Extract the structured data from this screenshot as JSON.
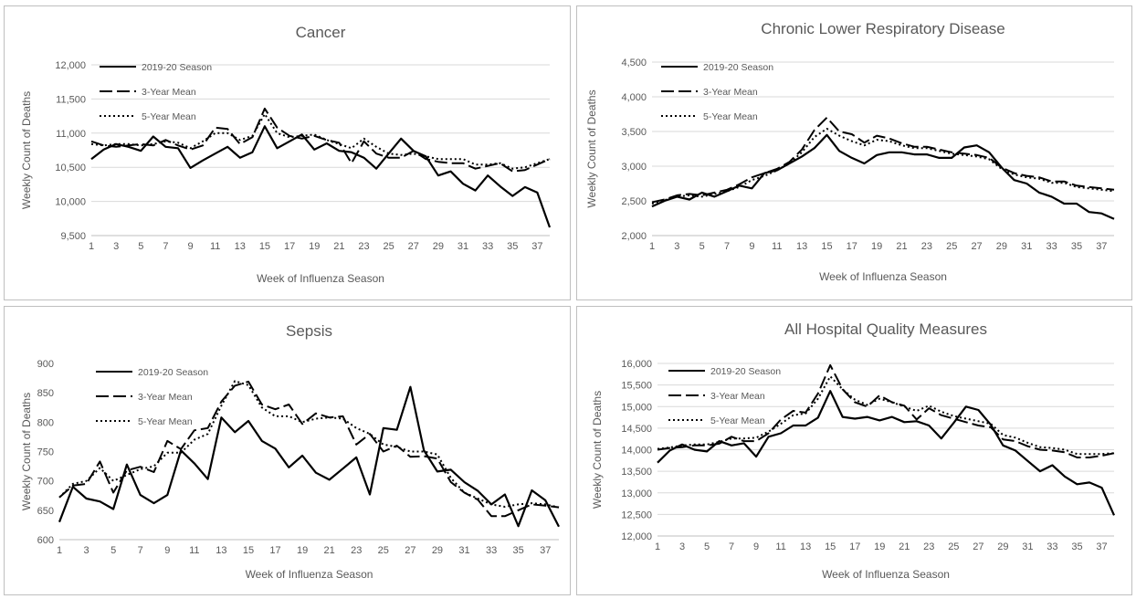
{
  "chart_data": [
    {
      "type": "line",
      "title": "Cancer",
      "xlabel": "Week of Influenza Season",
      "ylabel": "Weekly Count of Deaths",
      "ylim": [
        9500,
        12000
      ],
      "yticks": [
        "9,500",
        "10,000",
        "10,500",
        "11,000",
        "11,500",
        "12,000"
      ],
      "xticks": [
        "1",
        "3",
        "5",
        "7",
        "9",
        "11",
        "13",
        "15",
        "17",
        "19",
        "21",
        "23",
        "25",
        "27",
        "29",
        "31",
        "33",
        "35",
        "37"
      ],
      "xlim": [
        1,
        38
      ],
      "grid": true,
      "legend_position": "top-left",
      "series": [
        {
          "name": "2019-20 Season",
          "dash": "solid",
          "values": [
            10620,
            10760,
            10840,
            10800,
            10740,
            10950,
            10800,
            10780,
            10490,
            10600,
            10700,
            10800,
            10640,
            10720,
            11100,
            10780,
            10880,
            10980,
            10760,
            10850,
            10740,
            10720,
            10640,
            10480,
            10700,
            10920,
            10740,
            10660,
            10380,
            10440,
            10260,
            10160,
            10380,
            10220,
            10080,
            10210,
            10130,
            9620
          ]
        },
        {
          "name": "3-Year Mean",
          "dash": "long",
          "values": [
            10880,
            10820,
            10800,
            10820,
            10840,
            10820,
            10900,
            10820,
            10760,
            10820,
            11080,
            11060,
            10840,
            10940,
            11360,
            11080,
            10960,
            10920,
            10960,
            10900,
            10860,
            10560,
            10880,
            10700,
            10640,
            10640,
            10740,
            10620,
            10580,
            10560,
            10560,
            10480,
            10520,
            10560,
            10440,
            10460,
            10540,
            10620
          ]
        },
        {
          "name": "5-Year Mean",
          "dash": "dot",
          "values": [
            10840,
            10820,
            10840,
            10840,
            10820,
            10840,
            10880,
            10860,
            10780,
            10880,
            11000,
            11000,
            10900,
            10960,
            11280,
            11000,
            10940,
            10960,
            10980,
            10900,
            10840,
            10780,
            10920,
            10800,
            10700,
            10680,
            10700,
            10660,
            10620,
            10620,
            10620,
            10540,
            10540,
            10560,
            10480,
            10500,
            10560,
            10620
          ]
        }
      ]
    },
    {
      "type": "line",
      "title": "Chronic Lower Respiratory Disease",
      "xlabel": "Week of Influenza Season",
      "ylabel": "Weekly Count of Deaths",
      "ylim": [
        2000,
        4500
      ],
      "yticks": [
        "2,000",
        "2,500",
        "3,000",
        "3,500",
        "4,000",
        "4,500"
      ],
      "xticks": [
        "1",
        "3",
        "5",
        "7",
        "9",
        "11",
        "13",
        "15",
        "17",
        "19",
        "21",
        "23",
        "25",
        "27",
        "29",
        "31",
        "33",
        "35",
        "37"
      ],
      "xlim": [
        1,
        38
      ],
      "grid": true,
      "legend_position": "top-left",
      "series": [
        {
          "name": "2019-20 Season",
          "dash": "solid",
          "values": [
            2420,
            2500,
            2560,
            2520,
            2620,
            2560,
            2640,
            2720,
            2680,
            2900,
            2940,
            3040,
            3140,
            3260,
            3450,
            3220,
            3120,
            3040,
            3160,
            3200,
            3200,
            3170,
            3170,
            3120,
            3120,
            3270,
            3300,
            3200,
            2980,
            2800,
            2750,
            2620,
            2560,
            2460,
            2460,
            2340,
            2320,
            2240
          ]
        },
        {
          "name": "3-Year Mean",
          "dash": "long",
          "values": [
            2480,
            2520,
            2580,
            2600,
            2580,
            2620,
            2660,
            2740,
            2840,
            2900,
            2960,
            3060,
            3240,
            3520,
            3700,
            3500,
            3460,
            3340,
            3440,
            3400,
            3330,
            3280,
            3280,
            3240,
            3200,
            3180,
            3160,
            3120,
            2980,
            2900,
            2860,
            2840,
            2780,
            2780,
            2720,
            2700,
            2680,
            2660
          ]
        },
        {
          "name": "5-Year Mean",
          "dash": "dot",
          "values": [
            2460,
            2510,
            2560,
            2580,
            2560,
            2600,
            2640,
            2700,
            2800,
            2860,
            2940,
            3040,
            3200,
            3420,
            3540,
            3440,
            3360,
            3300,
            3380,
            3360,
            3300,
            3260,
            3260,
            3220,
            3180,
            3160,
            3140,
            3100,
            2960,
            2880,
            2840,
            2820,
            2760,
            2760,
            2700,
            2680,
            2660,
            2640
          ]
        }
      ]
    },
    {
      "type": "line",
      "title": "Sepsis",
      "xlabel": "Week of Influenza Season",
      "ylabel": "Weekly Count of Deaths",
      "ylim": [
        600,
        900
      ],
      "yticks": [
        "600",
        "650",
        "700",
        "750",
        "800",
        "850",
        "900"
      ],
      "xticks": [
        "1",
        "3",
        "5",
        "7",
        "9",
        "11",
        "13",
        "15",
        "17",
        "19",
        "21",
        "23",
        "25",
        "27",
        "29",
        "31",
        "33",
        "35",
        "37"
      ],
      "xlim": [
        1,
        38
      ],
      "grid": false,
      "legend_position": "top-left",
      "series": [
        {
          "name": "2019-20 Season",
          "dash": "solid",
          "values": [
            630,
            690,
            670,
            665,
            652,
            728,
            676,
            662,
            676,
            752,
            730,
            703,
            808,
            783,
            802,
            768,
            755,
            723,
            743,
            714,
            702,
            721,
            740,
            677,
            790,
            787,
            860,
            752,
            716,
            719,
            698,
            683,
            660,
            677,
            623,
            684,
            667,
            622
          ]
        },
        {
          "name": "3-Year Mean",
          "dash": "long",
          "values": [
            672,
            692,
            695,
            733,
            680,
            718,
            724,
            715,
            768,
            754,
            786,
            790,
            835,
            862,
            869,
            830,
            822,
            830,
            797,
            815,
            808,
            810,
            762,
            780,
            750,
            760,
            741,
            742,
            738,
            698,
            680,
            668,
            640,
            640,
            650,
            660,
            658,
            655
          ]
        },
        {
          "name": "5-Year Mean",
          "dash": "dot",
          "values": [
            672,
            695,
            700,
            722,
            700,
            710,
            720,
            725,
            748,
            748,
            770,
            780,
            828,
            870,
            863,
            825,
            810,
            810,
            800,
            806,
            808,
            806,
            790,
            780,
            762,
            758,
            750,
            750,
            745,
            705,
            680,
            670,
            660,
            656,
            660,
            662,
            660,
            655
          ]
        }
      ]
    },
    {
      "type": "line",
      "title": "All Hospital Quality Measures",
      "xlabel": "Week of Influenza Season",
      "ylabel": "Weekly Count of Deaths",
      "ylim": [
        12000,
        16000
      ],
      "yticks": [
        "12,000",
        "12,500",
        "13,000",
        "13,500",
        "14,000",
        "14,500",
        "15,000",
        "15,500",
        "16,000"
      ],
      "xticks": [
        "1",
        "3",
        "5",
        "7",
        "9",
        "11",
        "13",
        "15",
        "17",
        "19",
        "21",
        "23",
        "25",
        "27",
        "29",
        "31",
        "33",
        "35",
        "37"
      ],
      "xlim": [
        1,
        38
      ],
      "grid": true,
      "legend_position": "top-left",
      "series": [
        {
          "name": "2019-20 Season",
          "dash": "solid",
          "values": [
            13700,
            13980,
            14120,
            14000,
            13960,
            14200,
            14100,
            14150,
            13840,
            14300,
            14380,
            14560,
            14560,
            14740,
            15360,
            14760,
            14720,
            14760,
            14680,
            14760,
            14640,
            14660,
            14560,
            14260,
            14620,
            15000,
            14920,
            14580,
            14100,
            13980,
            13740,
            13500,
            13640,
            13380,
            13200,
            13240,
            13120,
            12480
          ]
        },
        {
          "name": "3-Year Mean",
          "dash": "long",
          "values": [
            14000,
            14040,
            14060,
            14100,
            14100,
            14140,
            14300,
            14200,
            14200,
            14380,
            14700,
            14900,
            14860,
            15300,
            15960,
            15400,
            15100,
            15000,
            15260,
            15100,
            15020,
            14700,
            14960,
            14800,
            14720,
            14640,
            14560,
            14520,
            14240,
            14200,
            14080,
            14000,
            13980,
            13940,
            13820,
            13820,
            13860,
            13920
          ]
        },
        {
          "name": "5-Year Mean",
          "dash": "dot",
          "values": [
            14020,
            14050,
            14100,
            14120,
            14120,
            14180,
            14260,
            14260,
            14280,
            14420,
            14600,
            14800,
            14840,
            15180,
            15700,
            15400,
            15160,
            15040,
            15180,
            15100,
            15000,
            14900,
            15020,
            14880,
            14780,
            14720,
            14660,
            14600,
            14340,
            14280,
            14160,
            14060,
            14040,
            14000,
            13900,
            13900,
            13900,
            13920
          ]
        }
      ]
    }
  ]
}
